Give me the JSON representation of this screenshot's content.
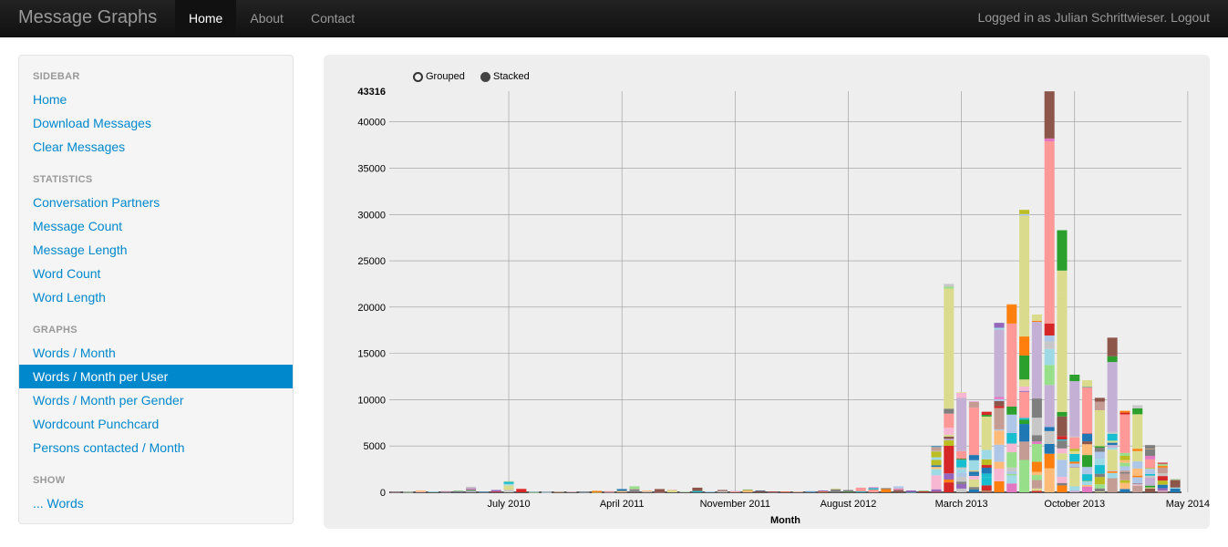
{
  "navbar": {
    "brand": "Message Graphs",
    "items": [
      {
        "label": "Home",
        "active": true
      },
      {
        "label": "About",
        "active": false
      },
      {
        "label": "Contact",
        "active": false
      }
    ],
    "login_text": "Logged in as Julian Schrittwieser.",
    "logout_label": "Logout"
  },
  "sidebar": {
    "sections": [
      {
        "header": "SIDEBAR",
        "items": [
          {
            "label": "Home"
          },
          {
            "label": "Download Messages"
          },
          {
            "label": "Clear Messages"
          }
        ]
      },
      {
        "header": "STATISTICS",
        "items": [
          {
            "label": "Conversation Partners"
          },
          {
            "label": "Message Count"
          },
          {
            "label": "Message Length"
          },
          {
            "label": "Word Count"
          },
          {
            "label": "Word Length"
          }
        ]
      },
      {
        "header": "GRAPHS",
        "items": [
          {
            "label": "Words / Month"
          },
          {
            "label": "Words / Month per User",
            "active": true
          },
          {
            "label": "Words / Month per Gender"
          },
          {
            "label": "Wordcount Punchcard"
          },
          {
            "label": "Persons contacted / Month"
          }
        ]
      },
      {
        "header": "SHOW",
        "items": [
          {
            "label": "... Words"
          }
        ]
      }
    ]
  },
  "controls": {
    "grouped_label": "Grouped",
    "stacked_label": "Stacked",
    "mode": "stacked"
  },
  "chart_data": {
    "type": "bar",
    "stacked": true,
    "xlabel": "Month",
    "ylim": [
      0,
      43316
    ],
    "y_max_label": "43316",
    "y_ticks": [
      0,
      5000,
      10000,
      15000,
      20000,
      25000,
      30000,
      35000,
      40000
    ],
    "x_tick_labels": [
      "July 2010",
      "April 2011",
      "November 2011",
      "August 2012",
      "March 2013",
      "October 2013",
      "May 2014"
    ],
    "x_tick_index": [
      9,
      18,
      27,
      36,
      45,
      54,
      63
    ],
    "grid": true,
    "colors": [
      "#1f77b4",
      "#aec7e8",
      "#ff7f0e",
      "#ffbb78",
      "#2ca02c",
      "#98df8a",
      "#d62728",
      "#ff9896",
      "#9467bd",
      "#c5b0d5",
      "#8c564b",
      "#c49c94",
      "#e377c2",
      "#f7b6d2",
      "#7f7f7f",
      "#c7c7c7",
      "#bcbd22",
      "#dbdb8d",
      "#17becf",
      "#9edae5"
    ],
    "totals": [
      30,
      80,
      200,
      60,
      120,
      150,
      600,
      80,
      250,
      1200,
      400,
      60,
      40,
      70,
      50,
      30,
      150,
      120,
      350,
      650,
      200,
      350,
      300,
      100,
      500,
      100,
      250,
      150,
      300,
      200,
      80,
      90,
      100,
      150,
      200,
      400,
      250,
      500,
      550,
      450,
      650,
      200,
      150,
      5000,
      22500,
      10800,
      9800,
      8700,
      18300,
      20300,
      30500,
      19200,
      43300,
      28300,
      12700,
      12100,
      10200,
      16700,
      8800,
      9400,
      5100,
      3200,
      1400
    ]
  }
}
